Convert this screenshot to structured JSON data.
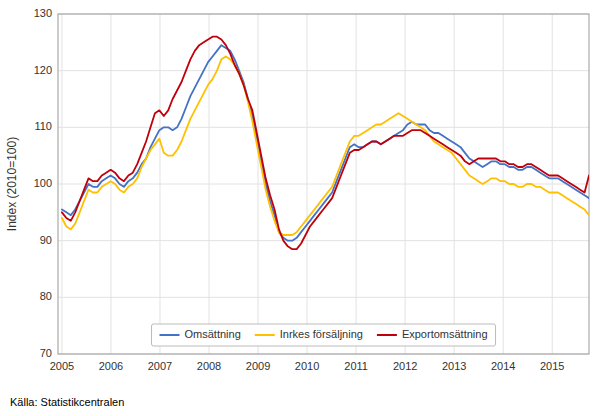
{
  "chart_data": {
    "type": "line",
    "ylabel": "Index (2010=100)",
    "source": "Källa: Statistikcentralen",
    "x": [
      2005,
      2005.090336,
      2005.180672,
      2005.271008,
      2005.361345,
      2005.451681,
      2005.542017,
      2005.632353,
      2005.722689,
      2005.813025,
      2005.903361,
      2005.993697,
      2006.084034,
      2006.17437,
      2006.264706,
      2006.355042,
      2006.445378,
      2006.535714,
      2006.62605,
      2006.716387,
      2006.806723,
      2006.897059,
      2006.987395,
      2007.077731,
      2007.168067,
      2007.258403,
      2007.348739,
      2007.439076,
      2007.529412,
      2007.619748,
      2007.710084,
      2007.80042,
      2007.890756,
      2007.981092,
      2008.071429,
      2008.161765,
      2008.252101,
      2008.342437,
      2008.432773,
      2008.523109,
      2008.613445,
      2008.703782,
      2008.794118,
      2008.884454,
      2008.97479,
      2009.065126,
      2009.155462,
      2009.245798,
      2009.336134,
      2009.426471,
      2009.516807,
      2009.607143,
      2009.697479,
      2009.787815,
      2009.878151,
      2009.968487,
      2010.058824,
      2010.14916,
      2010.239496,
      2010.329832,
      2010.420168,
      2010.510504,
      2010.60084,
      2010.691176,
      2010.781513,
      2010.871849,
      2010.962185,
      2011.052521,
      2011.142857,
      2011.233193,
      2011.323529,
      2011.413866,
      2011.504202,
      2011.594538,
      2011.684874,
      2011.77521,
      2011.865546,
      2011.955882,
      2012.046218,
      2012.136555,
      2012.226891,
      2012.317227,
      2012.407563,
      2012.497899,
      2012.588235,
      2012.678571,
      2012.768908,
      2012.859244,
      2012.94958,
      2013.039916,
      2013.130252,
      2013.220588,
      2013.310924,
      2013.401261,
      2013.491597,
      2013.581933,
      2013.672269,
      2013.762605,
      2013.852941,
      2013.943277,
      2014.033613,
      2014.12395,
      2014.214286,
      2014.304622,
      2014.394958,
      2014.485294,
      2014.57563,
      2014.665966,
      2014.756303,
      2014.846639,
      2014.936975,
      2015.027311,
      2015.117647,
      2015.207983,
      2015.298319,
      2015.388655,
      2015.478992,
      2015.569328,
      2015.659664,
      2015.75
    ],
    "series": [
      {
        "name": "Omsättning",
        "color": "#4472c4",
        "values": [
          95.5,
          95.0,
          94.5,
          95.5,
          97.0,
          98.5,
          100.0,
          99.5,
          99.5,
          100.5,
          101.0,
          101.5,
          101.0,
          100.0,
          99.5,
          100.5,
          101.0,
          102.0,
          103.5,
          104.5,
          106.5,
          108.0,
          109.5,
          110.0,
          110.0,
          109.5,
          110.0,
          111.5,
          113.5,
          115.5,
          117.0,
          118.5,
          120.0,
          121.5,
          122.5,
          123.5,
          124.5,
          124.0,
          123.5,
          122.0,
          120.0,
          118.0,
          115.0,
          112.0,
          108.0,
          104.0,
          100.0,
          97.0,
          94.5,
          91.5,
          90.5,
          90.0,
          90.0,
          90.5,
          91.5,
          92.5,
          93.5,
          94.5,
          95.5,
          96.5,
          97.5,
          98.5,
          100.5,
          102.5,
          104.5,
          106.5,
          107.0,
          106.5,
          106.5,
          107.0,
          107.5,
          107.5,
          107.0,
          107.5,
          108.0,
          108.5,
          109.0,
          109.5,
          110.5,
          111.0,
          110.5,
          110.5,
          110.5,
          109.5,
          109.0,
          109.0,
          108.5,
          108.0,
          107.5,
          107.0,
          106.5,
          105.5,
          104.5,
          104.0,
          103.5,
          103.0,
          103.5,
          104.0,
          104.0,
          103.5,
          103.5,
          103.0,
          103.0,
          102.5,
          102.5,
          103.0,
          103.0,
          102.5,
          102.0,
          101.5,
          101.0,
          101.0,
          101.0,
          100.5,
          100.0,
          99.5,
          99.0,
          98.5,
          98.0,
          97.5
        ]
      },
      {
        "name": "Inrkes försäljning",
        "color": "#ffc000",
        "values": [
          94.0,
          92.5,
          92.0,
          93.0,
          95.0,
          97.0,
          99.0,
          98.5,
          98.5,
          99.5,
          100.0,
          100.5,
          100.0,
          99.0,
          98.5,
          99.5,
          100.0,
          101.0,
          103.0,
          104.5,
          106.0,
          107.0,
          108.0,
          105.5,
          105.0,
          105.0,
          106.0,
          107.5,
          109.5,
          111.5,
          113.0,
          114.5,
          116.0,
          117.5,
          118.5,
          120.0,
          122.0,
          122.5,
          122.0,
          121.0,
          119.5,
          117.5,
          114.5,
          111.0,
          107.0,
          103.0,
          99.0,
          96.0,
          93.5,
          91.5,
          91.0,
          91.0,
          91.0,
          91.5,
          92.5,
          93.5,
          94.5,
          95.5,
          96.5,
          97.5,
          98.5,
          99.5,
          101.5,
          103.5,
          105.5,
          107.5,
          108.5,
          108.5,
          109.0,
          109.5,
          110.0,
          110.5,
          110.5,
          111.0,
          111.5,
          112.0,
          112.5,
          112.0,
          111.5,
          111.0,
          110.5,
          110.0,
          109.5,
          108.5,
          107.5,
          107.0,
          106.5,
          106.0,
          105.5,
          104.5,
          103.5,
          102.5,
          101.5,
          101.0,
          100.5,
          100.0,
          100.5,
          101.0,
          101.0,
          100.5,
          100.5,
          100.0,
          100.0,
          99.5,
          99.5,
          100.0,
          100.0,
          99.5,
          99.5,
          99.0,
          98.5,
          98.5,
          98.5,
          98.0,
          97.5,
          97.0,
          96.5,
          96.0,
          95.5,
          94.5
        ]
      },
      {
        "name": "Exportomsättning",
        "color": "#c0000a",
        "values": [
          95.0,
          94.0,
          93.5,
          95.0,
          97.0,
          99.0,
          101.0,
          100.5,
          100.5,
          101.5,
          102.0,
          102.5,
          102.0,
          101.0,
          100.5,
          101.5,
          102.0,
          103.5,
          105.5,
          107.5,
          110.0,
          112.5,
          113.0,
          112.0,
          113.0,
          115.0,
          116.5,
          118.0,
          120.0,
          122.0,
          123.5,
          124.5,
          125.0,
          125.5,
          126.0,
          126.0,
          125.5,
          124.5,
          123.0,
          121.0,
          119.5,
          117.5,
          115.0,
          113.0,
          109.0,
          105.0,
          101.0,
          98.0,
          95.5,
          92.0,
          90.0,
          89.0,
          88.5,
          88.5,
          89.5,
          91.0,
          92.5,
          93.5,
          94.5,
          95.5,
          96.5,
          97.5,
          99.5,
          101.5,
          103.5,
          105.5,
          106.0,
          106.0,
          106.5,
          107.0,
          107.5,
          107.5,
          107.0,
          107.5,
          108.0,
          108.5,
          108.5,
          108.5,
          109.0,
          109.5,
          109.5,
          109.5,
          109.0,
          108.5,
          108.0,
          107.5,
          107.0,
          106.5,
          106.0,
          105.5,
          105.0,
          104.0,
          103.5,
          104.0,
          104.5,
          104.5,
          104.5,
          104.5,
          104.5,
          104.0,
          104.0,
          103.5,
          103.5,
          103.0,
          103.0,
          103.5,
          103.5,
          103.0,
          102.5,
          102.0,
          101.5,
          101.5,
          101.5,
          101.0,
          100.5,
          100.0,
          99.5,
          99.0,
          98.5,
          101.5
        ]
      }
    ],
    "xlim": [
      2004.92,
      2015.75
    ],
    "xticks": [
      2005,
      2006,
      2007,
      2008,
      2009,
      2010,
      2011,
      2012,
      2013,
      2014,
      2015
    ],
    "ylim": [
      70,
      130
    ],
    "yticks": [
      70,
      80,
      90,
      100,
      110,
      120,
      130
    ],
    "grid": true,
    "legend": "bottom"
  }
}
